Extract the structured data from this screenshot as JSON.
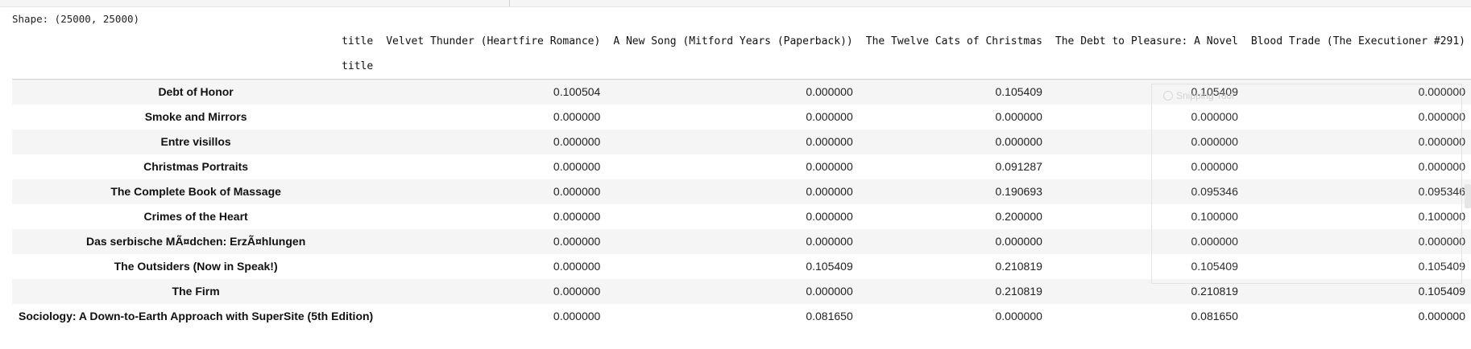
{
  "output": {
    "shape_text": "Shape: (25000, 25000)"
  },
  "table": {
    "columns_axis_name": "title",
    "index_name": "title",
    "columns": [
      "Velvet Thunder (Heartfire Romance)",
      "A New Song (Mitford Years (Paperback))",
      "The Twelve Cats of Christmas",
      "The Debt to Pleasure: A Novel",
      "Blood Trade (The Executioner #291)"
    ],
    "rows": [
      {
        "label": "Debt of Honor",
        "values": [
          "0.100504",
          "0.000000",
          "0.105409",
          "0.105409",
          "0.000000"
        ]
      },
      {
        "label": "Smoke and Mirrors",
        "values": [
          "0.000000",
          "0.000000",
          "0.000000",
          "0.000000",
          "0.000000"
        ]
      },
      {
        "label": "Entre visillos",
        "values": [
          "0.000000",
          "0.000000",
          "0.000000",
          "0.000000",
          "0.000000"
        ]
      },
      {
        "label": "Christmas Portraits",
        "values": [
          "0.000000",
          "0.000000",
          "0.091287",
          "0.000000",
          "0.000000"
        ]
      },
      {
        "label": "The Complete Book of Massage",
        "values": [
          "0.000000",
          "0.000000",
          "0.190693",
          "0.095346",
          "0.095346"
        ]
      },
      {
        "label": "Crimes of the Heart",
        "values": [
          "0.000000",
          "0.000000",
          "0.200000",
          "0.100000",
          "0.100000"
        ]
      },
      {
        "label": "Das serbische MÃ¤dchen: ErzÃ¤hlungen",
        "values": [
          "0.000000",
          "0.000000",
          "0.000000",
          "0.000000",
          "0.000000"
        ]
      },
      {
        "label": "The Outsiders (Now in Speak!)",
        "values": [
          "0.000000",
          "0.105409",
          "0.210819",
          "0.105409",
          "0.105409"
        ]
      },
      {
        "label": "The Firm",
        "values": [
          "0.000000",
          "0.000000",
          "0.210819",
          "0.210819",
          "0.105409"
        ]
      },
      {
        "label": "Sociology: A Down-to-Earth Approach with SuperSite (5th Edition)",
        "values": [
          "0.000000",
          "0.081650",
          "0.000000",
          "0.081650",
          "0.000000"
        ]
      }
    ]
  },
  "overlay": {
    "title": "Snipping Tool"
  }
}
